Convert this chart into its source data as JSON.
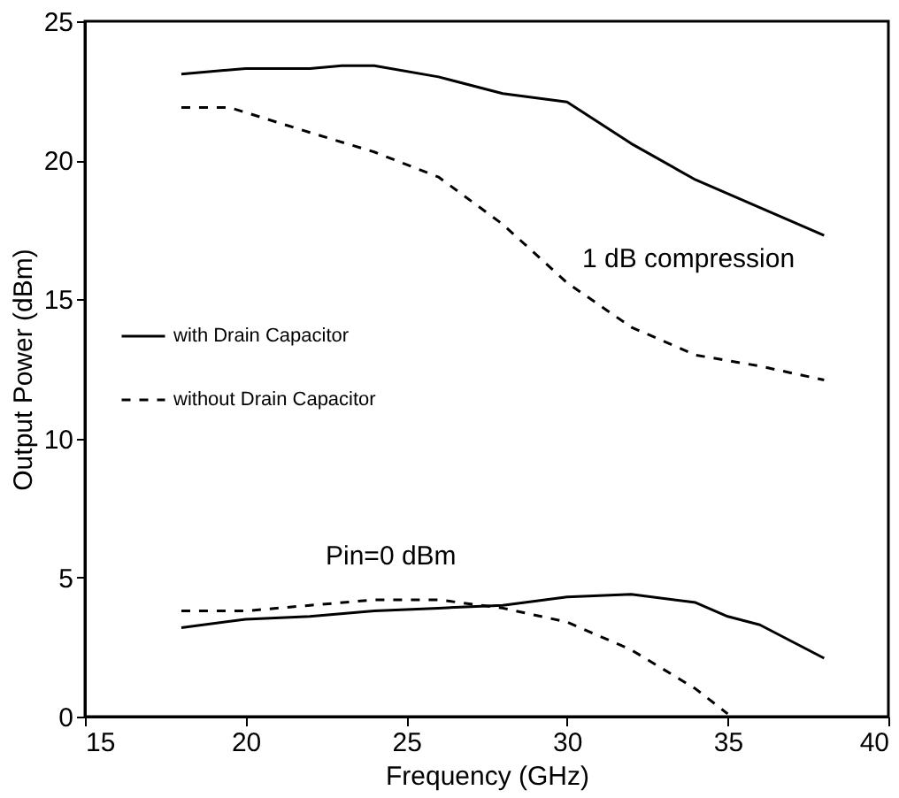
{
  "chart_data": {
    "type": "line",
    "xlabel": "Frequency (GHz)",
    "ylabel": "Output Power (dBm)",
    "xlim": [
      15,
      40
    ],
    "xticks": [
      15,
      20,
      25,
      30,
      35,
      40
    ],
    "ylim": [
      0,
      25
    ],
    "yticks": [
      0,
      5,
      10,
      15,
      20,
      25
    ],
    "grid": false,
    "legend": "left",
    "marker": "none",
    "series": [
      {
        "name": "with Drain Capacitor",
        "color": "#000000",
        "line_style": "solid",
        "x": [
          18,
          20,
          22,
          23,
          24,
          26,
          28,
          30,
          32,
          34,
          36,
          38
        ],
        "values": [
          23.1,
          23.3,
          23.3,
          23.4,
          23.4,
          23.0,
          22.4,
          22.1,
          20.6,
          19.3,
          18.3,
          17.3
        ]
      },
      {
        "name": "without Drain Capacitor",
        "color": "#000000",
        "line_style": "dashed",
        "x": [
          18,
          19.5,
          22,
          24,
          26,
          28,
          30,
          32,
          34,
          36,
          38
        ],
        "values": [
          21.9,
          21.9,
          21.0,
          20.3,
          19.4,
          17.7,
          15.6,
          14.0,
          13.0,
          12.6,
          12.1
        ]
      },
      {
        "color": "#000000",
        "line_style": "solid",
        "x": [
          18,
          20,
          22,
          24,
          26,
          28,
          30,
          32,
          34,
          35,
          36,
          38
        ],
        "values": [
          3.2,
          3.5,
          3.6,
          3.8,
          3.9,
          4.0,
          4.3,
          4.4,
          4.1,
          3.6,
          3.3,
          2.1
        ]
      },
      {
        "color": "#000000",
        "line_style": "dashed",
        "x": [
          18,
          20,
          22,
          24,
          26,
          28,
          30,
          32,
          34,
          35
        ],
        "values": [
          3.8,
          3.8,
          4.0,
          4.2,
          4.2,
          3.9,
          3.4,
          2.4,
          1.0,
          0.1
        ]
      }
    ],
    "annotations": [
      "1 dB compression",
      "Pin=0 dBm"
    ]
  }
}
